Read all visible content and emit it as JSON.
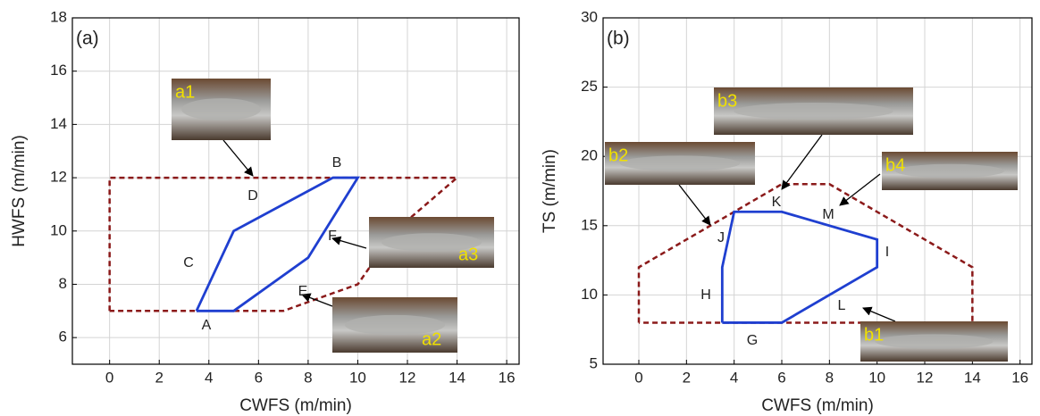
{
  "chart_data": [
    {
      "type": "line",
      "panel_label": "(a)",
      "x_label": "CWFS (m/min)",
      "y_label": "HWFS (m/min)",
      "xlim": [
        -1.5,
        16.5
      ],
      "ylim": [
        5,
        18
      ],
      "xticks": [
        0,
        2,
        4,
        6,
        8,
        10,
        12,
        14,
        16
      ],
      "yticks": [
        6,
        8,
        10,
        12,
        14,
        16,
        18
      ],
      "grid": true,
      "series": [
        {
          "color": "#8b1a1a",
          "style": "dashed",
          "x": [
            0,
            0,
            14,
            11.5,
            10,
            7,
            0
          ],
          "values": [
            7,
            12,
            12,
            10,
            8,
            7,
            7
          ]
        },
        {
          "color": "#1f3fd0",
          "style": "solid",
          "x": [
            3.5,
            5,
            9,
            10,
            8,
            5,
            3.5
          ],
          "values": [
            7,
            10,
            12,
            12,
            9,
            7,
            7
          ]
        }
      ],
      "annotations": [
        "A",
        "B",
        "C",
        "D",
        "E",
        "F"
      ],
      "insets": [
        "a1",
        "a2",
        "a3"
      ]
    },
    {
      "type": "line",
      "panel_label": "(b)",
      "x_label": "CWFS (m/min)",
      "y_label": "TS (m/min)",
      "xlim": [
        -1.5,
        16.5
      ],
      "ylim": [
        5,
        30
      ],
      "xticks": [
        0,
        2,
        4,
        6,
        8,
        10,
        12,
        14,
        16
      ],
      "yticks": [
        5,
        10,
        15,
        20,
        25,
        30
      ],
      "grid": true,
      "series": [
        {
          "color": "#8b1a1a",
          "style": "dashed",
          "x": [
            0,
            0,
            6,
            8,
            14,
            14,
            0
          ],
          "values": [
            8,
            12,
            18,
            18,
            12,
            8,
            8
          ]
        },
        {
          "color": "#1f3fd0",
          "style": "solid",
          "x": [
            3.5,
            3.5,
            4,
            6,
            10,
            10,
            6,
            3.5
          ],
          "values": [
            8,
            12,
            16,
            16,
            14,
            12,
            8,
            8
          ]
        }
      ],
      "annotations": [
        "G",
        "H",
        "I",
        "J",
        "K",
        "L",
        "M"
      ],
      "insets": [
        "b1",
        "b2",
        "b3",
        "b4"
      ]
    }
  ]
}
